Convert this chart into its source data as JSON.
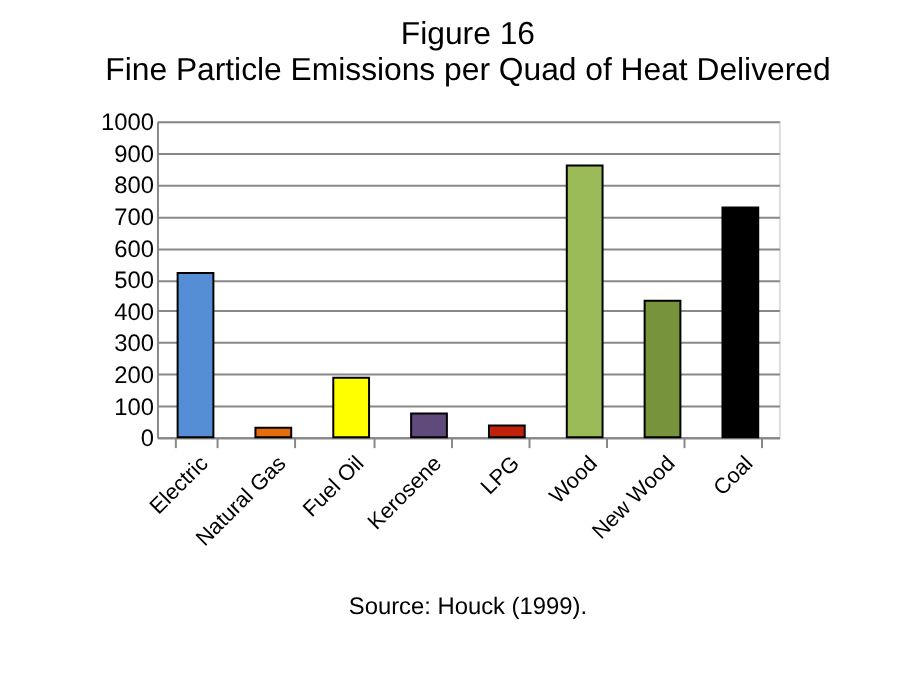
{
  "chart_data": {
    "type": "bar",
    "title": "Figure 16",
    "subtitle": "Fine Particle Emissions per Quad of Heat Delivered",
    "categories": [
      "Electric",
      "Natural Gas",
      "Fuel Oil",
      "Kerosene",
      "LPG",
      "Wood",
      "New Wood",
      "Coal"
    ],
    "values": [
      520,
      30,
      188,
      75,
      37,
      860,
      432,
      727
    ],
    "colors": [
      "#558ed5",
      "#e46c0a",
      "#ffff00",
      "#604a7b",
      "#c0210a",
      "#9bbb59",
      "#77933c",
      "#000000"
    ],
    "ylim": [
      0,
      1000
    ],
    "yticks": [
      0,
      100,
      200,
      300,
      400,
      500,
      600,
      700,
      800,
      900,
      1000
    ],
    "grid": "y",
    "annotations": [
      "Source:  Houck (1999)."
    ]
  }
}
